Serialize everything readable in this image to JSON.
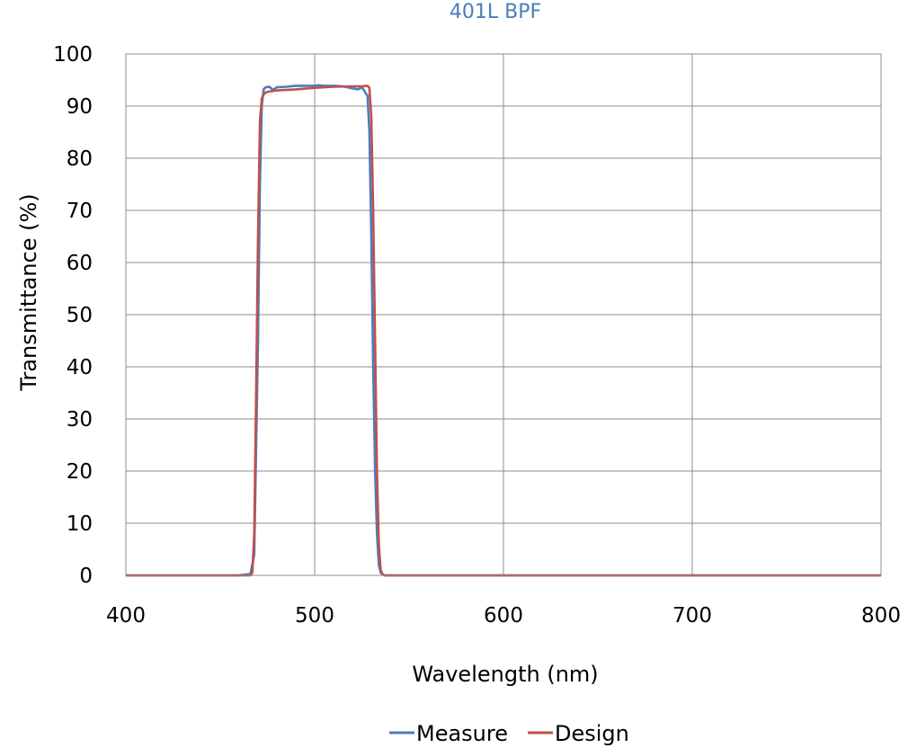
{
  "chart_data": {
    "type": "line",
    "title": "401L BPF",
    "xlabel": "Wavelength (nm)",
    "ylabel": "Transmittance (%)",
    "xlim": [
      400,
      800
    ],
    "ylim": [
      0,
      100
    ],
    "xticks": [
      400,
      500,
      600,
      700,
      800
    ],
    "yticks": [
      0,
      10,
      20,
      30,
      40,
      50,
      60,
      70,
      80,
      90,
      100
    ],
    "grid": true,
    "legend_position": "bottom",
    "title_color": "#4a7ebb",
    "series": [
      {
        "name": "Measure",
        "color": "#4a7ebb",
        "x": [
          400,
          460,
          466,
          468,
          470,
          471,
          472,
          473,
          474,
          476,
          478,
          480,
          485,
          490,
          500,
          502,
          505,
          510,
          515,
          520,
          523,
          525,
          526,
          527,
          528,
          529,
          530,
          531,
          532,
          533,
          534,
          535,
          536,
          537,
          540,
          545,
          800
        ],
        "y": [
          0,
          0,
          0.3,
          4,
          45,
          75,
          90,
          93.2,
          93.6,
          93.7,
          93.1,
          93.6,
          93.7,
          93.9,
          93.9,
          94.0,
          93.9,
          93.9,
          93.8,
          93.4,
          93.2,
          93.6,
          93.1,
          92.5,
          92.0,
          85,
          65,
          40,
          20,
          8,
          2,
          0.5,
          0.2,
          0,
          0,
          0,
          0
        ]
      },
      {
        "name": "Design",
        "color": "#c0504d",
        "x": [
          400,
          466,
          467,
          468,
          469,
          470,
          471,
          472,
          473,
          474,
          476,
          480,
          490,
          500,
          510,
          520,
          525,
          528,
          529,
          530,
          531,
          532,
          533,
          534,
          535,
          536,
          537,
          540,
          800
        ],
        "y": [
          0,
          0,
          0.5,
          8,
          35,
          65,
          87,
          91.5,
          92.2,
          92.6,
          92.8,
          93.0,
          93.2,
          93.5,
          93.7,
          93.8,
          93.8,
          93.9,
          93.5,
          88,
          70,
          45,
          20,
          6,
          1,
          0.2,
          0,
          0,
          0
        ]
      }
    ]
  }
}
